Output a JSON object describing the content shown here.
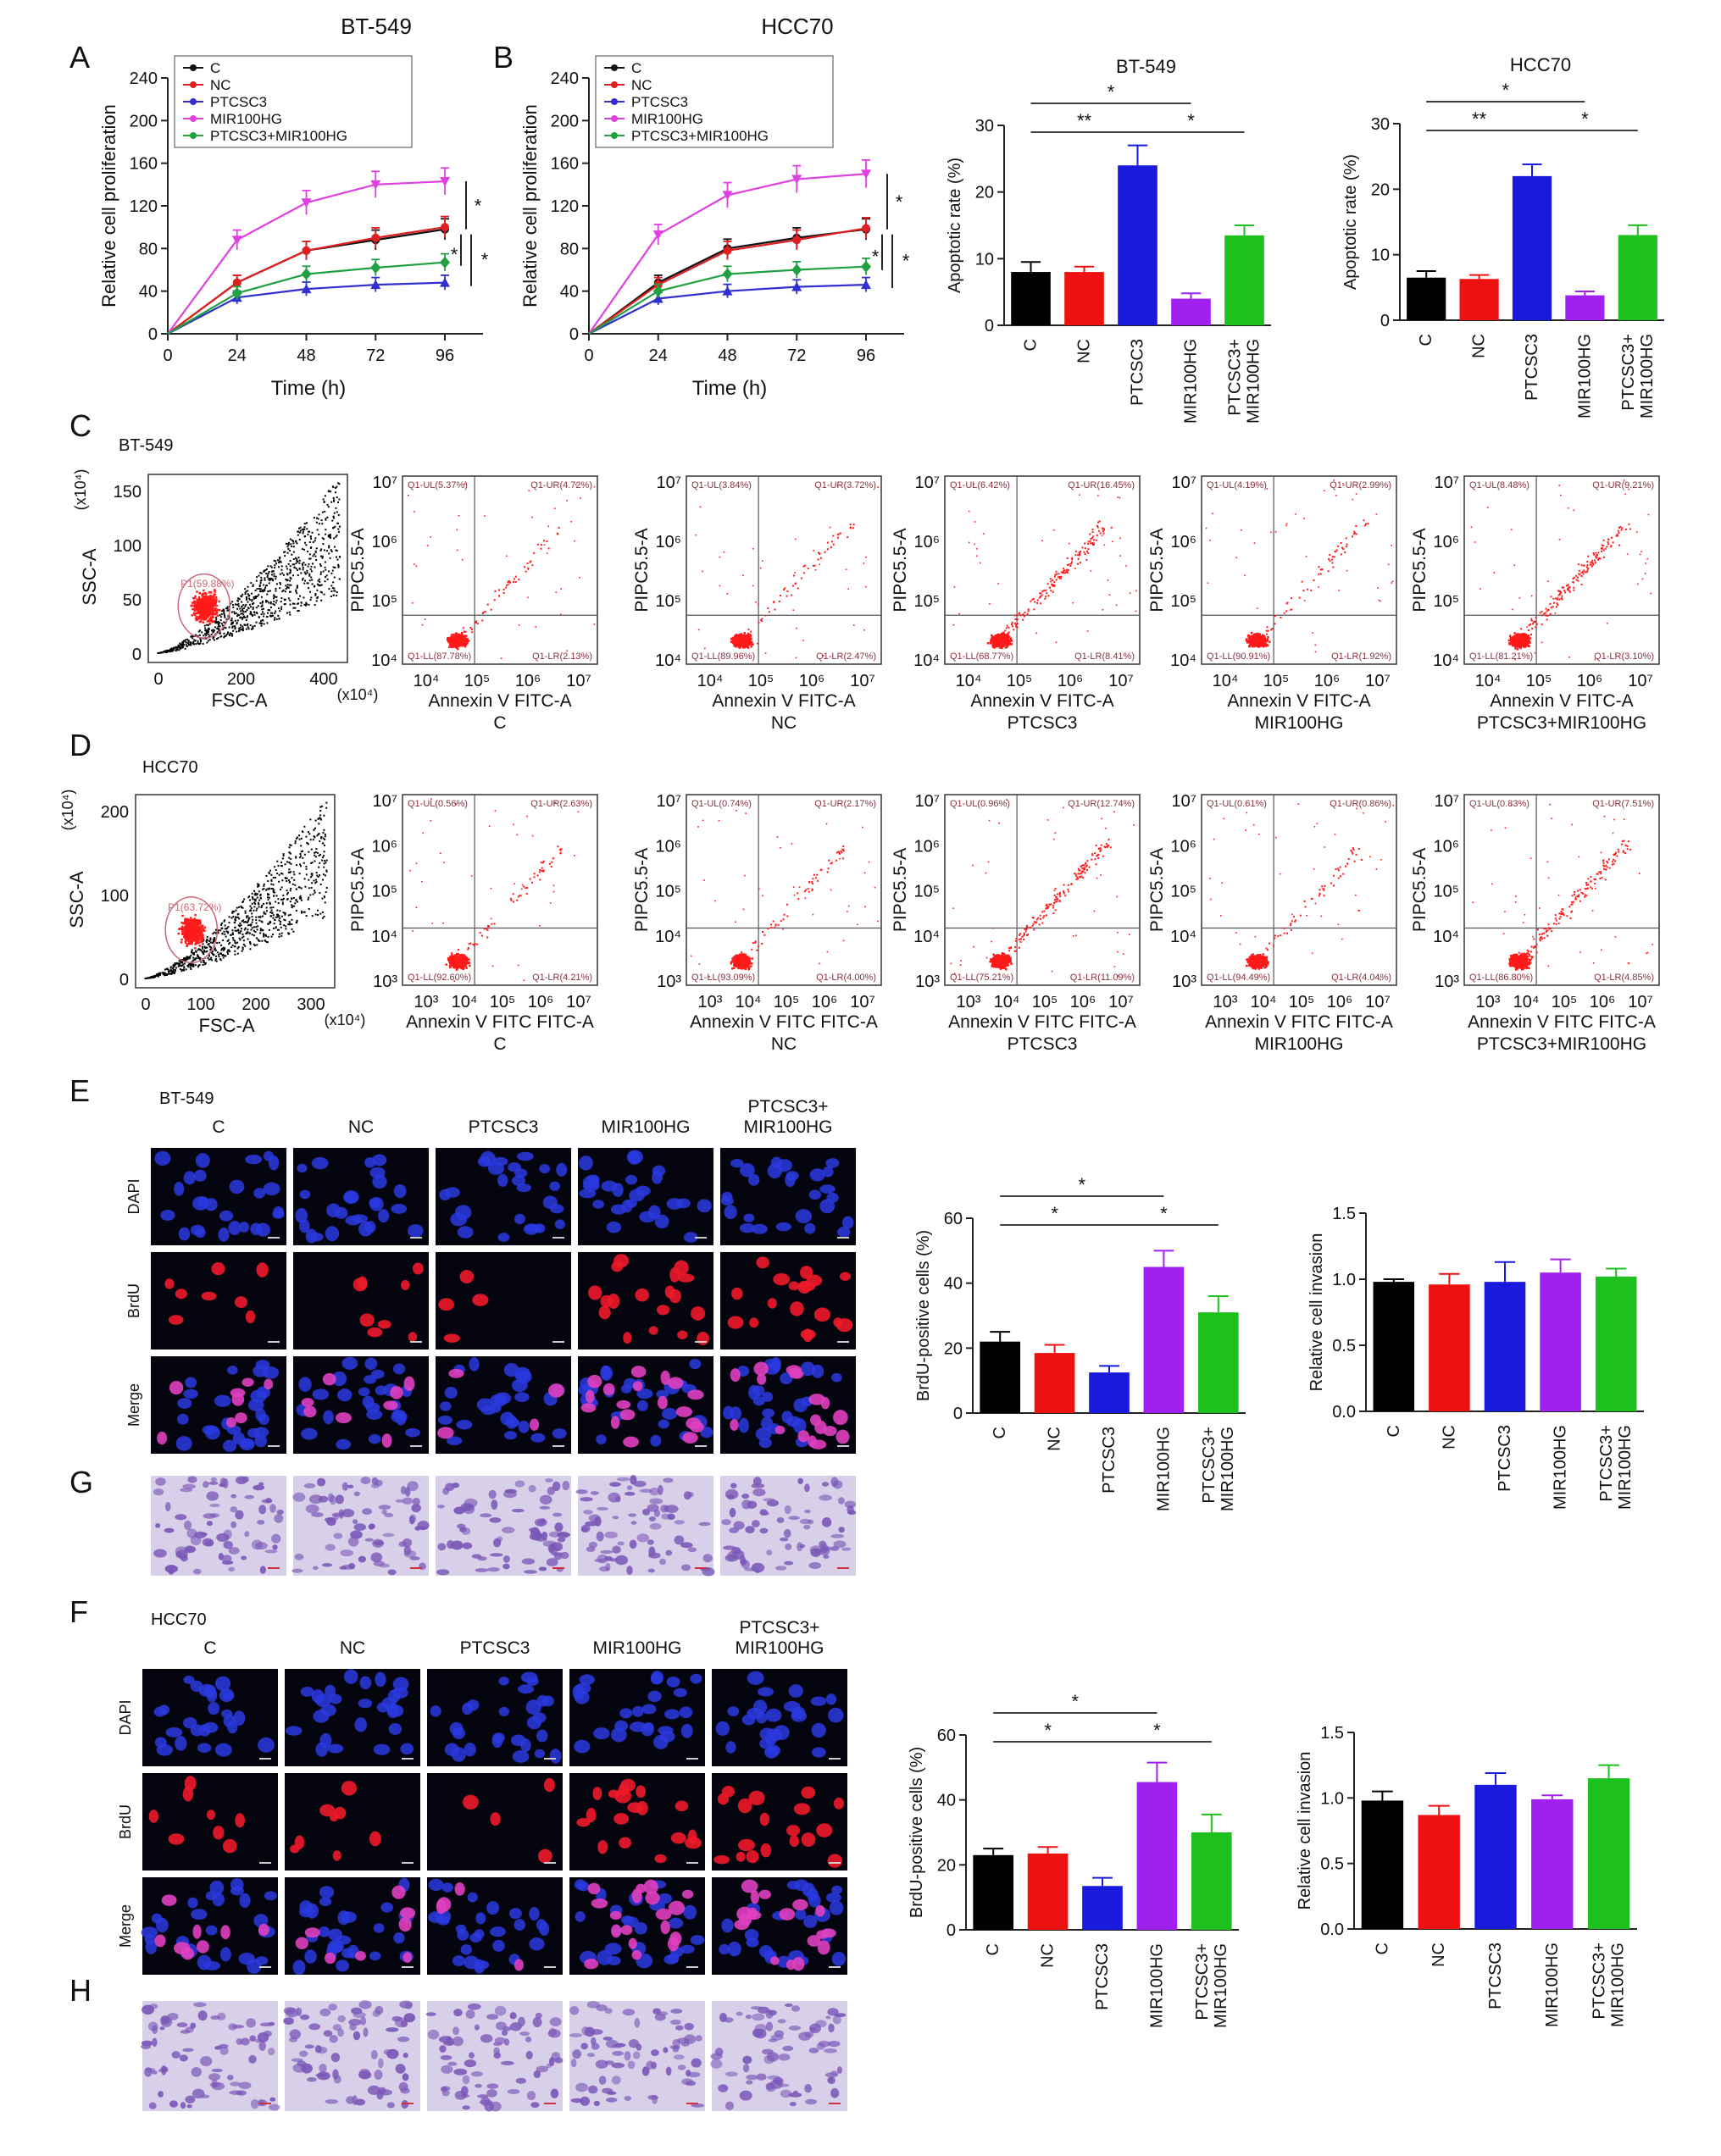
{
  "panel_letters": {
    "A": "A",
    "B": "B",
    "C": "C",
    "D": "D",
    "E": "E",
    "F": "F",
    "G": "G",
    "H": "H"
  },
  "colors": {
    "C": "#000000",
    "NC": "#ee1111",
    "PTCSC3": "#1a1adf",
    "MIR100HG": "#a020ef",
    "PTCSC3+MIR100HG": "#1ec01e",
    "line_C": "#111111",
    "line_NC": "#e02020",
    "line_PTCSC3": "#3030d0",
    "line_MIR100HG": "#e040e0",
    "line_PTCSC3+MIR100HG": "#20a040",
    "dot_red": "#ff1a1a",
    "dot_black": "#000000",
    "gate": "#cc6677"
  },
  "chart_data": [
    {
      "id": "A",
      "type": "line",
      "title": "BT-549",
      "xlabel": "Time (h)",
      "ylabel": "Relative cell proliferation",
      "x": [
        0,
        24,
        48,
        72,
        96
      ],
      "xticks": [
        "0",
        "24",
        "48",
        "72",
        "96"
      ],
      "ylim": [
        0,
        240
      ],
      "yticks": [
        "0",
        "40",
        "80",
        "120",
        "160",
        "200",
        "240"
      ],
      "legend": [
        "C",
        "NC",
        "PTCSC3",
        "MIR100HG",
        "PTCSC3+MIR100HG"
      ],
      "series": [
        {
          "name": "C",
          "values": [
            0,
            48,
            78,
            88,
            98
          ]
        },
        {
          "name": "NC",
          "values": [
            0,
            48,
            78,
            90,
            100
          ]
        },
        {
          "name": "PTCSC3",
          "values": [
            0,
            34,
            42,
            46,
            48
          ]
        },
        {
          "name": "MIR100HG",
          "values": [
            0,
            88,
            123,
            140,
            143
          ]
        },
        {
          "name": "PTCSC3+MIR100HG",
          "values": [
            0,
            38,
            56,
            62,
            67
          ]
        }
      ],
      "annotations": [
        "*",
        "*",
        "*"
      ]
    },
    {
      "id": "B",
      "type": "line",
      "title": "HCC70",
      "xlabel": "Time (h)",
      "ylabel": "Relative cell proliferation",
      "x": [
        0,
        24,
        48,
        72,
        96
      ],
      "xticks": [
        "0",
        "24",
        "48",
        "72",
        "96"
      ],
      "ylim": [
        0,
        240
      ],
      "yticks": [
        "0",
        "40",
        "80",
        "120",
        "160",
        "200",
        "240"
      ],
      "legend": [
        "C",
        "NC",
        "PTCSC3",
        "MIR100HG",
        "PTCSC3+MIR100HG"
      ],
      "series": [
        {
          "name": "C",
          "values": [
            0,
            48,
            80,
            90,
            98
          ]
        },
        {
          "name": "NC",
          "values": [
            0,
            46,
            78,
            88,
            99
          ]
        },
        {
          "name": "PTCSC3",
          "values": [
            0,
            33,
            40,
            44,
            46
          ]
        },
        {
          "name": "MIR100HG",
          "values": [
            0,
            93,
            130,
            145,
            150
          ]
        },
        {
          "name": "PTCSC3+MIR100HG",
          "values": [
            0,
            40,
            56,
            60,
            63
          ]
        }
      ],
      "annotations": [
        "*",
        "*",
        "*"
      ]
    },
    {
      "id": "apop-bt549",
      "type": "bar",
      "title": "BT-549",
      "ylabel": "Apoptotic rate (%)",
      "categories": [
        "C",
        "NC",
        "PTCSC3",
        "MIR100HG",
        "PTCSC3+\nMIR100HG"
      ],
      "values": [
        8,
        8,
        24,
        4,
        13.5
      ],
      "errors": [
        1.5,
        0.8,
        3,
        0.8,
        1.5
      ],
      "ylim": [
        0,
        30
      ],
      "yticks": [
        "0",
        "10",
        "20",
        "30"
      ],
      "sig": [
        "*",
        "**",
        "*"
      ]
    },
    {
      "id": "apop-hcc70",
      "type": "bar",
      "title": "HCC70",
      "ylabel": "Apoptotic rate (%)",
      "categories": [
        "C",
        "NC",
        "PTCSC3",
        "MIR100HG",
        "PTCSC3+\nMIR100HG"
      ],
      "values": [
        6.5,
        6.3,
        22,
        3.8,
        13
      ],
      "errors": [
        1,
        0.6,
        1.8,
        0.6,
        1.5
      ],
      "ylim": [
        0,
        30
      ],
      "yticks": [
        "0",
        "10",
        "20",
        "30"
      ],
      "sig": [
        "*",
        "**",
        "*"
      ]
    },
    {
      "id": "brdu-bt549",
      "type": "bar",
      "ylabel": "BrdU-positive cells (%)",
      "categories": [
        "C",
        "NC",
        "PTCSC3",
        "MIR100HG",
        "PTCSC3+\nMIR100HG"
      ],
      "values": [
        22,
        18.5,
        12.5,
        45,
        31
      ],
      "errors": [
        3,
        2.5,
        2,
        5,
        5
      ],
      "ylim": [
        0,
        60
      ],
      "yticks": [
        "0",
        "20",
        "40",
        "60"
      ],
      "sig": [
        "*",
        "*",
        "*"
      ]
    },
    {
      "id": "inv-bt549",
      "type": "bar",
      "ylabel": "Relative cell invasion",
      "categories": [
        "C",
        "NC",
        "PTCSC3",
        "MIR100HG",
        "PTCSC3+\nMIR100HG"
      ],
      "values": [
        0.98,
        0.96,
        0.98,
        1.05,
        1.02
      ],
      "errors": [
        0.02,
        0.08,
        0.15,
        0.1,
        0.06
      ],
      "ylim": [
        0,
        1.5
      ],
      "yticks": [
        "0.0",
        "0.5",
        "1.0",
        "1.5"
      ]
    },
    {
      "id": "brdu-hcc70",
      "type": "bar",
      "ylabel": "BrdU-positive cells (%)",
      "categories": [
        "C",
        "NC",
        "PTCSC3",
        "MIR100HG",
        "PTCSC3+\nMIR100HG"
      ],
      "values": [
        23,
        23.5,
        13.5,
        45.5,
        30
      ],
      "errors": [
        2,
        2,
        2.5,
        6,
        5.5
      ],
      "ylim": [
        0,
        60
      ],
      "yticks": [
        "0",
        "20",
        "40",
        "60"
      ],
      "sig": [
        "*",
        "*",
        "*"
      ]
    },
    {
      "id": "inv-hcc70",
      "type": "bar",
      "ylabel": "Relative cell invasion",
      "categories": [
        "C",
        "NC",
        "PTCSC3",
        "MIR100HG",
        "PTCSC3+\nMIR100HG"
      ],
      "values": [
        0.98,
        0.87,
        1.1,
        0.99,
        1.15
      ],
      "errors": [
        0.07,
        0.07,
        0.09,
        0.03,
        0.1
      ],
      "ylim": [
        0,
        1.5
      ],
      "yticks": [
        "0.0",
        "0.5",
        "1.0",
        "1.5"
      ]
    }
  ],
  "flow": {
    "C": {
      "cell_line": "BT-549",
      "scatter": {
        "ylabel": "SSC-A",
        "ymult": "(x10⁴)",
        "xlabel": "FSC-A",
        "xmult": "(x10⁴)",
        "yticks": [
          "0",
          "50",
          "100",
          "150"
        ],
        "xticks": [
          "0",
          "200",
          "400"
        ],
        "gate_label": "P1(59.88%)"
      },
      "ylabel": "PIPC5.5-A",
      "xlabel": "Annexin V FITC-A",
      "yticks": [
        "10⁴",
        "10⁵",
        "10⁶",
        "10⁷"
      ],
      "xticks": [
        "10⁴",
        "10⁵",
        "10⁶",
        "10⁷"
      ],
      "plots": [
        {
          "group": "C",
          "UL": "Q1-UL(5.37%)",
          "UR": "Q1-UR(4.72%)",
          "LL": "Q1-LL(87.78%)",
          "LR": "Q1-LR(2.13%)"
        },
        {
          "group": "NC",
          "UL": "Q1-UL(3.84%)",
          "UR": "Q1-UR(3.72%)",
          "LL": "Q1-LL(89.96%)",
          "LR": "Q1-LR(2.47%)"
        },
        {
          "group": "PTCSC3",
          "UL": "Q1-UL(6.42%)",
          "UR": "Q1-UR(16.45%)",
          "LL": "Q1-LL(68.77%)",
          "LR": "Q1-LR(8.41%)"
        },
        {
          "group": "MIR100HG",
          "UL": "Q1-UL(4.19%)",
          "UR": "Q1-UR(2.99%)",
          "LL": "Q1-LL(90.91%)",
          "LR": "Q1-LR(1.92%)"
        },
        {
          "group": "PTCSC3+MIR100HG",
          "UL": "Q1-UL(8.48%)",
          "UR": "Q1-UR(9.21%)",
          "LL": "Q1-LL(81.21%)",
          "LR": "Q1-LR(3.10%)"
        }
      ]
    },
    "D": {
      "cell_line": "HCC70",
      "scatter": {
        "ylabel": "SSC-A",
        "ymult": "(x10⁴)",
        "xlabel": "FSC-A",
        "xmult": "(x10⁴)",
        "yticks": [
          "0",
          "100",
          "200"
        ],
        "xticks": [
          "0",
          "100",
          "200",
          "300"
        ],
        "gate_label": "P1(63.72%)"
      },
      "ylabel": "PIPC5.5-A",
      "xlabel": "Annexin V FITC FITC-A",
      "yticks": [
        "10³",
        "10⁴",
        "10⁵",
        "10⁶",
        "10⁷"
      ],
      "xticks": [
        "10³",
        "10⁴",
        "10⁵",
        "10⁶",
        "10⁷"
      ],
      "plots": [
        {
          "group": "C",
          "UL": "Q1-UL(0.56%)",
          "UR": "Q1-UR(2.63%)",
          "LL": "Q1-LL(92.60%)",
          "LR": "Q1-LR(4.21%)"
        },
        {
          "group": "NC",
          "UL": "Q1-UL(0.74%)",
          "UR": "Q1-UR(2.17%)",
          "LL": "Q1-LL(93.09%)",
          "LR": "Q1-LR(4.00%)"
        },
        {
          "group": "PTCSC3",
          "UL": "Q1-UL(0.96%)",
          "UR": "Q1-UR(12.74%)",
          "LL": "Q1-LL(75.21%)",
          "LR": "Q1-LR(11.09%)"
        },
        {
          "group": "MIR100HG",
          "UL": "Q1-UL(0.61%)",
          "UR": "Q1-UR(0.86%)",
          "LL": "Q1-LL(94.49%)",
          "LR": "Q1-LR(4.04%)"
        },
        {
          "group": "PTCSC3+MIR100HG",
          "UL": "Q1-UL(0.83%)",
          "UR": "Q1-UR(7.51%)",
          "LL": "Q1-LL(86.80%)",
          "LR": "Q1-LR(4.85%)"
        }
      ]
    }
  },
  "micro": {
    "E": {
      "cell_line": "BT-549",
      "columns": [
        "C",
        "NC",
        "PTCSC3",
        "MIR100HG",
        "PTCSC3+\nMIR100HG"
      ],
      "rows": [
        "DAPI",
        "BrdU",
        "Merge"
      ]
    },
    "F": {
      "cell_line": "HCC70",
      "columns": [
        "C",
        "NC",
        "PTCSC3",
        "MIR100HG",
        "PTCSC3+\nMIR100HG"
      ],
      "rows": [
        "DAPI",
        "BrdU",
        "Merge"
      ]
    }
  }
}
